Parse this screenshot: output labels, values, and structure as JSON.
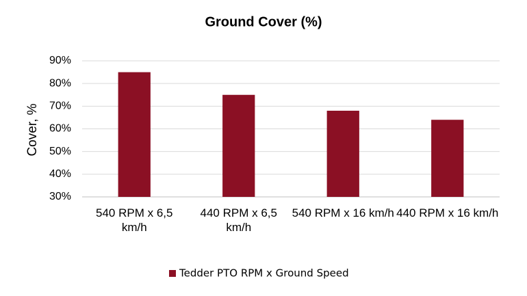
{
  "chart_data": {
    "type": "bar",
    "title": "Ground Cover (%)",
    "y_label": "Cover, %",
    "categories": [
      "540 RPM x 6,5 km/h",
      "440 RPM x 6,5 km/h",
      "540 RPM x 16 km/h",
      "440 RPM x 16 km/h"
    ],
    "series": [
      {
        "name": "Tedder PTO RPM x Ground Speed",
        "color": "#8b1024",
        "values": [
          85,
          75,
          68,
          64
        ]
      }
    ],
    "ylim": [
      30,
      90
    ],
    "yticks": [
      {
        "value": 30,
        "label": "30%"
      },
      {
        "value": 40,
        "label": "40%"
      },
      {
        "value": 50,
        "label": "50%"
      },
      {
        "value": 60,
        "label": "60%"
      },
      {
        "value": 70,
        "label": "70%"
      },
      {
        "value": 80,
        "label": "80%"
      },
      {
        "value": 90,
        "label": "90%"
      }
    ],
    "grid": true,
    "legend": "bottom"
  }
}
